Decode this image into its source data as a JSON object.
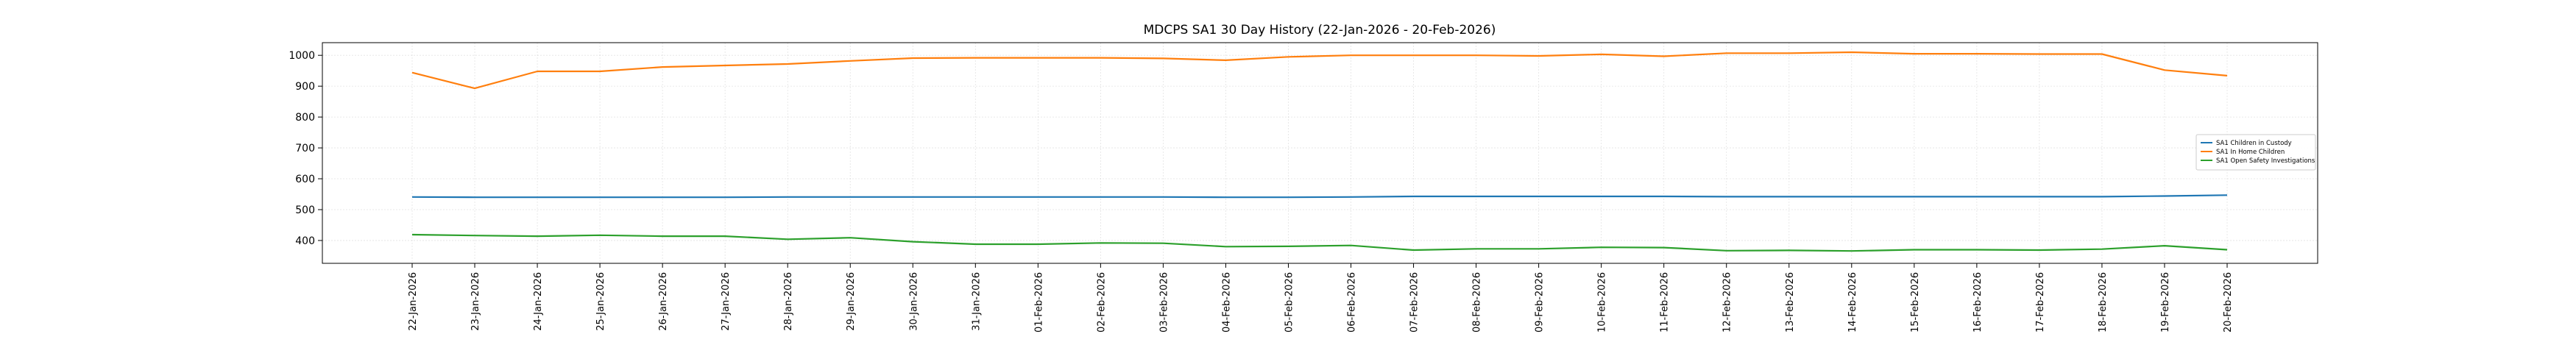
{
  "chart_data": {
    "type": "line",
    "title": "MDCPS SA1 30 Day History (22-Jan-2026 - 20-Feb-2026)",
    "xlabel": "",
    "ylabel": "",
    "grid": true,
    "legend_position": "center-right",
    "ylim": [
      326,
      1041
    ],
    "yticks": [
      400,
      500,
      600,
      700,
      800,
      900,
      1000
    ],
    "categories": [
      "22-Jan-2026",
      "23-Jan-2026",
      "24-Jan-2026",
      "25-Jan-2026",
      "26-Jan-2026",
      "27-Jan-2026",
      "28-Jan-2026",
      "29-Jan-2026",
      "30-Jan-2026",
      "31-Jan-2026",
      "01-Feb-2026",
      "02-Feb-2026",
      "03-Feb-2026",
      "04-Feb-2026",
      "05-Feb-2026",
      "06-Feb-2026",
      "07-Feb-2026",
      "08-Feb-2026",
      "09-Feb-2026",
      "10-Feb-2026",
      "11-Feb-2026",
      "12-Feb-2026",
      "13-Feb-2026",
      "14-Feb-2026",
      "15-Feb-2026",
      "16-Feb-2026",
      "17-Feb-2026",
      "18-Feb-2026",
      "19-Feb-2026",
      "20-Feb-2026"
    ],
    "series": [
      {
        "name": "SA1 Children in Custody",
        "color": "#1f77b4",
        "values": [
          541,
          540,
          540,
          540,
          540,
          540,
          541,
          541,
          541,
          541,
          541,
          541,
          541,
          540,
          540,
          541,
          543,
          543,
          543,
          543,
          543,
          542,
          542,
          542,
          542,
          542,
          542,
          542,
          544,
          547
        ]
      },
      {
        "name": "SA1 In Home Children",
        "color": "#ff7f0e",
        "values": [
          944,
          893,
          948,
          948,
          962,
          967,
          972,
          982,
          991,
          992,
          992,
          992,
          990,
          984,
          995,
          1000,
          1000,
          1000,
          998,
          1003,
          997,
          1007,
          1007,
          1010,
          1005,
          1005,
          1004,
          1004,
          952,
          934
        ]
      },
      {
        "name": "SA1 Open Safety Investigations",
        "color": "#2ca02c",
        "values": [
          419,
          416,
          414,
          417,
          414,
          414,
          404,
          409,
          396,
          388,
          388,
          392,
          391,
          380,
          381,
          384,
          369,
          373,
          373,
          378,
          377,
          367,
          368,
          366,
          370,
          370,
          369,
          372,
          383,
          370
        ]
      }
    ]
  }
}
